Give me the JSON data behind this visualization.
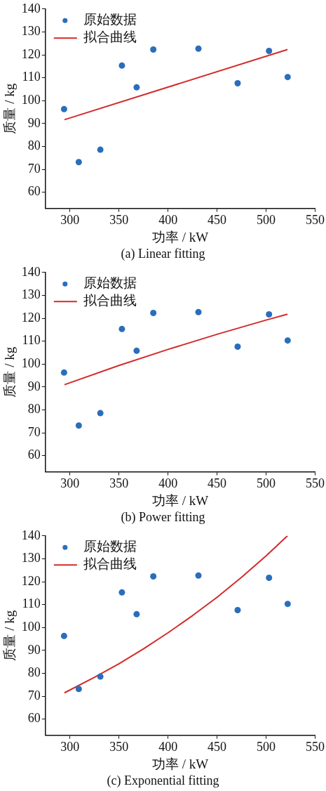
{
  "chart_data": [
    {
      "type": "scatter",
      "title": "(a) Linear fitting",
      "xlabel": "功率 / kW",
      "ylabel": "质量 / kg",
      "xlim": [
        275,
        550
      ],
      "ylim": [
        53,
        140
      ],
      "xticks": [
        300,
        350,
        400,
        450,
        500,
        550
      ],
      "yticks": [
        60,
        70,
        80,
        90,
        100,
        110,
        120,
        130,
        140
      ],
      "legend": "top left",
      "grid": false,
      "marker": "circle",
      "series": [
        {
          "name": "原始数据",
          "type": "scatter",
          "color": "#2a6ebb",
          "x": [
            294,
            309,
            331,
            353,
            368,
            385,
            431,
            471,
            503,
            522
          ],
          "values": [
            96.3,
            73.2,
            78.6,
            115.3,
            105.8,
            122.3,
            122.7,
            107.6,
            121.7,
            110.3
          ]
        },
        {
          "name": "拟合曲线",
          "type": "line",
          "marker": "none",
          "color": "#d42a2a",
          "x": [
            294.4,
            521.8
          ],
          "values": [
            91.7,
            122.3
          ]
        }
      ]
    },
    {
      "type": "scatter",
      "title": "(b) Power fitting",
      "xlabel": "功率 / kW",
      "ylabel": "质量 / kg",
      "xlim": [
        275,
        550
      ],
      "ylim": [
        53,
        140
      ],
      "xticks": [
        300,
        350,
        400,
        450,
        500,
        550
      ],
      "yticks": [
        60,
        70,
        80,
        90,
        100,
        110,
        120,
        130,
        140
      ],
      "legend": "top left",
      "grid": false,
      "marker": "circle",
      "series": [
        {
          "name": "原始数据",
          "type": "scatter",
          "color": "#2a6ebb",
          "x": [
            294,
            309,
            331,
            353,
            368,
            385,
            431,
            471,
            503,
            522
          ],
          "values": [
            96.3,
            73.2,
            78.6,
            115.3,
            105.8,
            122.3,
            122.7,
            107.6,
            121.7,
            110.3
          ]
        },
        {
          "name": "拟合曲线",
          "type": "line",
          "marker": "none",
          "color": "#d42a2a",
          "x": [
            294.4,
            350,
            400,
            450,
            500,
            521.8
          ],
          "values": [
            91,
            99.4,
            106.4,
            113,
            119.2,
            121.8
          ]
        }
      ]
    },
    {
      "type": "scatter",
      "title": "(c) Exponential fitting",
      "xlabel": "功率 / kW",
      "ylabel": "质量 / kg",
      "xlim": [
        275,
        550
      ],
      "ylim": [
        53,
        140
      ],
      "xticks": [
        300,
        350,
        400,
        450,
        500,
        550
      ],
      "yticks": [
        60,
        70,
        80,
        90,
        100,
        110,
        120,
        130,
        140
      ],
      "legend": "top left",
      "grid": false,
      "marker": "circle",
      "series": [
        {
          "name": "原始数据",
          "type": "scatter",
          "color": "#2a6ebb",
          "x": [
            294,
            309,
            331,
            353,
            368,
            385,
            431,
            471,
            503,
            522
          ],
          "values": [
            96.3,
            73.2,
            78.6,
            115.3,
            105.8,
            122.3,
            122.7,
            107.6,
            121.7,
            110.3
          ]
        },
        {
          "name": "拟合曲线",
          "type": "line",
          "marker": "none",
          "color": "#d42a2a",
          "x": [
            294.4,
            325,
            350,
            375,
            400,
            425,
            450,
            475,
            500,
            521.8
          ],
          "values": [
            71.5,
            78.3,
            84.2,
            90.7,
            97.7,
            105.2,
            113.2,
            121.9,
            131.3,
            140
          ]
        }
      ]
    }
  ]
}
